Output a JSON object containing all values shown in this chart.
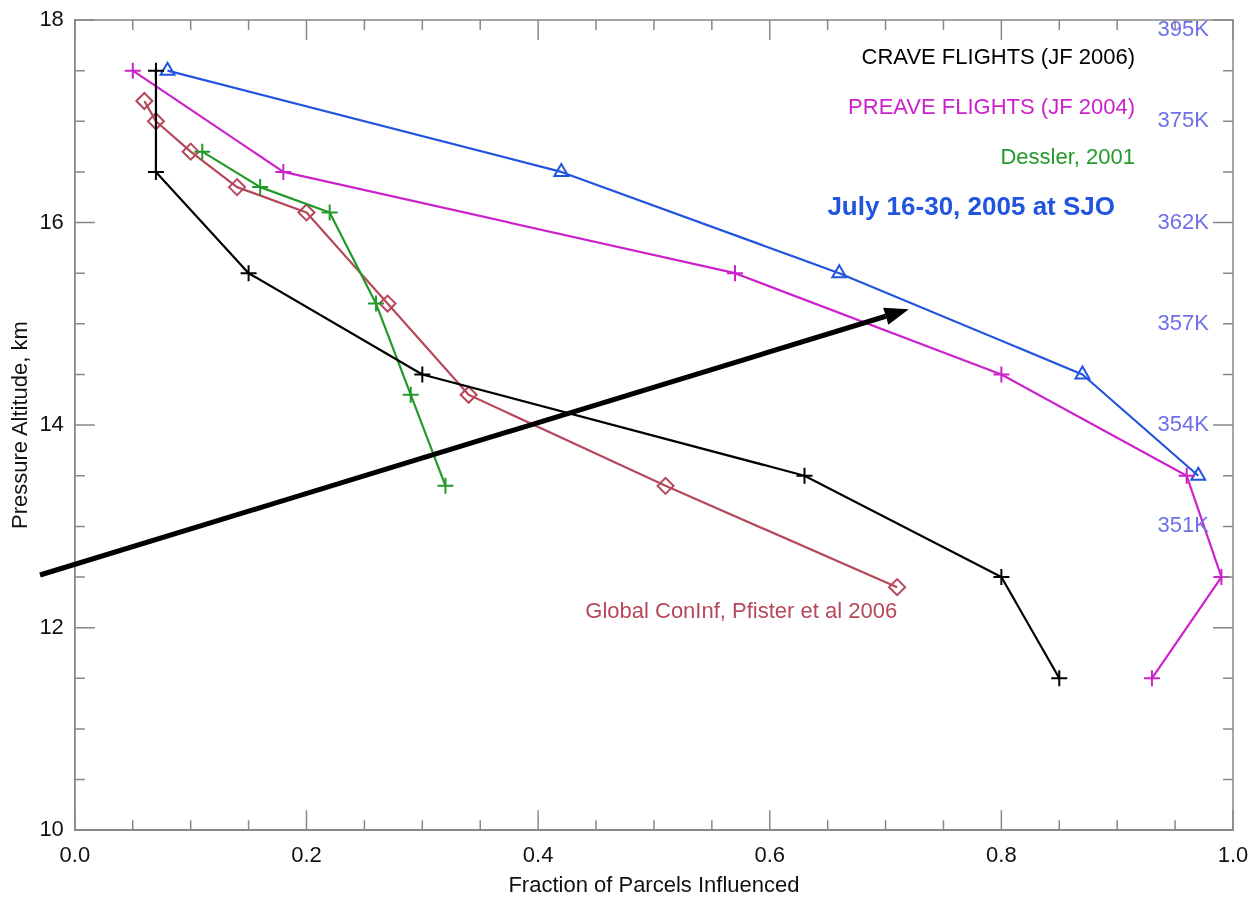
{
  "chart_data": {
    "type": "line",
    "xlabel": "Fraction of Parcels Influenced",
    "ylabel": "Pressure Altitude, km",
    "xlim": [
      0,
      1
    ],
    "xticks": [
      {
        "value": 0,
        "label": "0.0"
      },
      {
        "value": 0.2,
        "label": "0.2"
      },
      {
        "value": 0.4,
        "label": "0.4"
      },
      {
        "value": 0.6,
        "label": "0.6"
      },
      {
        "value": 0.8,
        "label": "0.8"
      },
      {
        "value": 1,
        "label": "1.0"
      }
    ],
    "ylim": [
      10,
      18
    ],
    "yticks": [
      10,
      12,
      14,
      16,
      18
    ],
    "annotations": [
      "395K",
      "375K",
      "362K",
      "357K",
      "354K",
      "351K"
    ],
    "grid": false,
    "legend": "top right",
    "line_style": "solid",
    "series": [
      {
        "name": "CRAVE FLIGHTS (JF 2006)",
        "color": "#000000",
        "marker": "cross",
        "x": [
          0.07,
          0.07,
          0.15,
          0.3,
          0.63,
          0.8,
          0.85
        ],
        "values": [
          17.5,
          16.5,
          15.5,
          14.5,
          13.5,
          12.5,
          11.5
        ]
      },
      {
        "name": "PREAVE FLIGHTS (JF 2004)",
        "color": "#cc22cc",
        "marker": "cross",
        "x": [
          0.05,
          0.18,
          0.57,
          0.8,
          0.96,
          0.99,
          0.93
        ],
        "values": [
          17.5,
          16.5,
          15.5,
          14.5,
          13.5,
          12.5,
          11.5
        ]
      },
      {
        "name": "Dessler, 2001",
        "color": "#229a2a",
        "marker": "cross",
        "x": [
          0.11,
          0.16,
          0.22,
          0.26,
          0.29,
          0.32
        ],
        "values": [
          16.7,
          16.35,
          16.1,
          15.2,
          14.3,
          13.4
        ]
      },
      {
        "name": "July 16-30, 2005 at SJO",
        "color": "#2255dd",
        "marker": "triangle",
        "x": [
          0.08,
          0.42,
          0.66,
          0.87,
          0.97
        ],
        "values": [
          17.5,
          16.5,
          15.5,
          14.5,
          13.5
        ]
      },
      {
        "name": "Global ConInf, Pfister et al 2006",
        "color": "#b5485a",
        "marker": "diamond",
        "x": [
          0.06,
          0.07,
          0.1,
          0.14,
          0.2,
          0.27,
          0.34,
          0.51,
          0.71
        ],
        "values": [
          17.2,
          17.0,
          16.7,
          16.35,
          16.1,
          15.2,
          14.3,
          13.4,
          12.4
        ]
      }
    ]
  }
}
